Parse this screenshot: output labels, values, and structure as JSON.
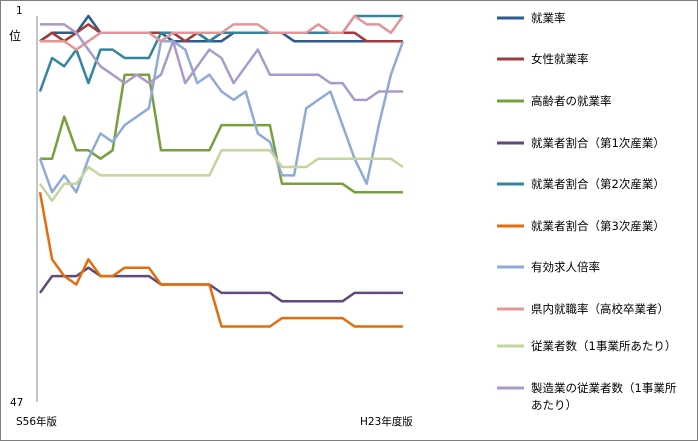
{
  "chart_data": {
    "type": "line",
    "y_top_label": "1",
    "y_top_unit": "位",
    "y_bottom_label": "47",
    "x_start_label": "S56年版",
    "x_end_label": "H23年度版",
    "ylim": [
      1,
      47
    ],
    "y_inverted": true,
    "n_points": 31,
    "grid": false,
    "legend_position": "right",
    "series": [
      {
        "name": "就業率",
        "color": "#2e5a8c",
        "values": [
          4,
          3,
          3,
          3,
          1,
          3,
          3,
          3,
          3,
          3,
          3,
          4,
          4,
          4,
          4,
          4,
          3,
          3,
          3,
          3,
          3,
          4,
          4,
          4,
          4,
          4,
          4,
          4,
          4,
          4,
          4
        ]
      },
      {
        "name": "女性就業率",
        "color": "#a33a3a",
        "values": [
          4,
          3,
          4,
          3,
          2,
          3,
          3,
          3,
          3,
          3,
          3,
          3,
          4,
          3,
          4,
          3,
          3,
          3,
          3,
          3,
          3,
          3,
          3,
          3,
          3,
          3,
          3,
          4,
          4,
          4,
          4
        ]
      },
      {
        "name": "高齢者の就業率",
        "color": "#77a03c",
        "values": [
          18,
          18,
          13,
          17,
          17,
          18,
          17,
          8,
          8,
          8,
          17,
          17,
          17,
          17,
          17,
          14,
          14,
          14,
          14,
          14,
          21,
          21,
          21,
          21,
          21,
          21,
          22,
          22,
          22,
          22,
          22
        ]
      },
      {
        "name": "就業者割合（第1次産業）",
        "color": "#604a7b",
        "values": [
          34,
          32,
          32,
          32,
          31,
          32,
          32,
          32,
          32,
          32,
          33,
          33,
          33,
          33,
          33,
          34,
          34,
          34,
          34,
          34,
          35,
          35,
          35,
          35,
          35,
          35,
          34,
          34,
          34,
          34,
          34
        ]
      },
      {
        "name": "就業者割合（第2次産業）",
        "color": "#31859c",
        "values": [
          10,
          6,
          7,
          5,
          9,
          5,
          5,
          6,
          6,
          6,
          3,
          3,
          3,
          3,
          4,
          3,
          3,
          3,
          3,
          3,
          3,
          3,
          3,
          3,
          3,
          3,
          1,
          1,
          1,
          1,
          1
        ]
      },
      {
        "name": "就業者割合（第3次産業）",
        "color": "#e46c0a",
        "values": [
          22,
          30,
          32,
          33,
          30,
          32,
          32,
          31,
          31,
          31,
          33,
          33,
          33,
          33,
          33,
          38,
          38,
          38,
          38,
          38,
          37,
          37,
          37,
          37,
          37,
          37,
          38,
          38,
          38,
          38,
          38
        ]
      },
      {
        "name": "有効求人倍率",
        "color": "#8eaad6",
        "values": [
          18,
          22,
          20,
          22,
          18,
          15,
          16,
          14,
          13,
          12,
          4,
          4,
          5,
          9,
          8,
          10,
          11,
          10,
          15,
          16,
          20,
          20,
          12,
          11,
          10,
          14,
          18,
          21,
          14,
          8,
          4
        ]
      },
      {
        "name": "県内就職率（高校卒業者）",
        "color": "#e39597",
        "values": [
          4,
          4,
          4,
          5,
          4,
          3,
          3,
          3,
          3,
          3,
          4,
          3,
          3,
          3,
          3,
          3,
          2,
          2,
          2,
          3,
          3,
          3,
          3,
          2,
          3,
          3,
          1,
          2,
          2,
          3,
          1
        ]
      },
      {
        "name": "従業者数（1事業所あたり）",
        "color": "#c3d69b",
        "values": [
          21,
          23,
          21,
          21,
          19,
          20,
          20,
          20,
          20,
          20,
          20,
          20,
          20,
          20,
          20,
          17,
          17,
          17,
          17,
          17,
          19,
          19,
          19,
          18,
          18,
          18,
          18,
          18,
          18,
          18,
          19
        ]
      },
      {
        "name": "製造業の従業者数（1事業所あたり）",
        "color": "#a99bc8",
        "values": [
          2,
          2,
          2,
          3,
          5,
          7,
          8,
          9,
          8,
          9,
          8,
          4,
          9,
          7,
          5,
          6,
          9,
          7,
          5,
          8,
          8,
          8,
          8,
          8,
          9,
          9,
          11,
          11,
          10,
          10,
          10
        ]
      }
    ]
  }
}
